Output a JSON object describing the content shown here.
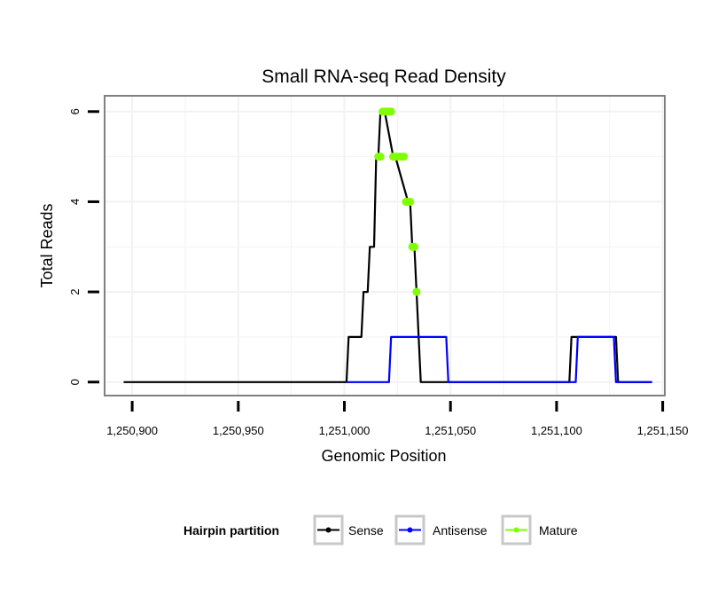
{
  "chart_data": {
    "type": "line",
    "title": "Small RNA-seq Read Density",
    "xlabel": "Genomic Position",
    "ylabel": "Total Reads",
    "xlim": [
      1250887,
      1251151
    ],
    "ylim": [
      -0.3,
      6.35
    ],
    "x_ticks": [
      1250900,
      1250950,
      1251000,
      1251050,
      1251100,
      1251150
    ],
    "x_tick_labels": [
      "1,250,900",
      "1,250,950",
      "1,251,000",
      "1,251,050",
      "1,251,100",
      "1,251,150"
    ],
    "y_ticks": [
      0,
      2,
      4,
      6
    ],
    "y_tick_labels": [
      "0",
      "2",
      "4",
      "6"
    ],
    "grid": true,
    "legend": {
      "title": "Hairpin partition",
      "position": "bottom",
      "entries": [
        "Sense",
        "Antisense",
        "Mature"
      ]
    },
    "series": [
      {
        "name": "Sense",
        "color": "#000000",
        "x": [
          1250896,
          1251001,
          1251002,
          1251008,
          1251009,
          1251011,
          1251012,
          1251014,
          1251015,
          1251016,
          1251017,
          1251018,
          1251019,
          1251023,
          1251024,
          1251030,
          1251031,
          1251032,
          1251033,
          1251034,
          1251035,
          1251036,
          1251037,
          1251106,
          1251107,
          1251128,
          1251129,
          1251145
        ],
        "y": [
          0,
          0,
          1,
          1,
          2,
          2,
          3,
          3,
          5,
          5,
          6,
          6,
          6,
          5,
          5,
          4,
          4,
          3,
          3,
          2,
          1,
          0,
          0,
          0,
          1,
          1,
          0,
          0
        ]
      },
      {
        "name": "Antisense",
        "color": "#0000ff",
        "x": [
          1251001,
          1251021,
          1251022,
          1251048,
          1251049,
          1251109,
          1251110,
          1251127,
          1251128,
          1251145
        ],
        "y": [
          0,
          0,
          1,
          1,
          0,
          0,
          1,
          1,
          0,
          0
        ]
      },
      {
        "name": "Mature",
        "color": "#7fff00",
        "x": [
          1251016,
          1251017,
          1251018,
          1251019,
          1251020,
          1251021,
          1251022,
          1251023,
          1251024,
          1251025,
          1251026,
          1251027,
          1251028,
          1251029,
          1251030,
          1251031,
          1251032,
          1251033,
          1251034
        ],
        "y": [
          5,
          5,
          6,
          6,
          6,
          6,
          6,
          5,
          5,
          5,
          5,
          5,
          5,
          4,
          4,
          4,
          3,
          3,
          2
        ]
      }
    ]
  }
}
